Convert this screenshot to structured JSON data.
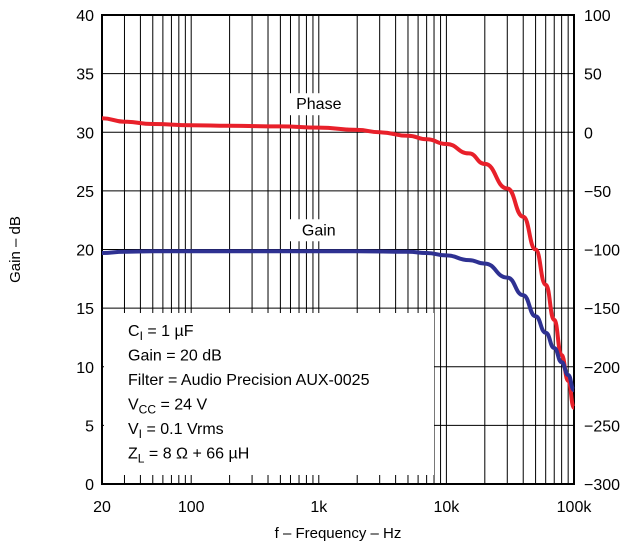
{
  "chart_data": {
    "type": "line",
    "x_scale": "log",
    "xlabel": "f – Frequency – Hz",
    "ylabel": "Gain – dB",
    "xlim": [
      20,
      100000
    ],
    "ylim": [
      0,
      40
    ],
    "y2lim": [
      -300,
      100
    ],
    "x_ticks": [
      "20",
      "100",
      "1k",
      "10k",
      "100k"
    ],
    "x_tick_values": [
      20,
      100,
      1000,
      10000,
      100000
    ],
    "y_ticks": [
      "0",
      "5",
      "10",
      "15",
      "20",
      "25",
      "30",
      "35",
      "40"
    ],
    "y_tick_values": [
      0,
      5,
      10,
      15,
      20,
      25,
      30,
      35,
      40
    ],
    "y2_ticks": [
      "−300",
      "−250",
      "−200",
      "−150",
      "−100",
      "−50",
      "0",
      "50",
      "100"
    ],
    "y2_tick_values": [
      -300,
      -250,
      -200,
      -150,
      -100,
      -50,
      0,
      50,
      100
    ],
    "grid": true,
    "series": [
      {
        "name": "Phase",
        "axis": "right",
        "color": "#e8202a",
        "x": [
          20,
          30,
          50,
          100,
          200,
          500,
          1000,
          2000,
          3000,
          5000,
          7000,
          10000,
          15000,
          20000,
          30000,
          40000,
          50000,
          60000,
          70000,
          80000,
          90000,
          100000
        ],
        "y": [
          12,
          9,
          7,
          6,
          5.5,
          5,
          4,
          2,
          0,
          -3,
          -6,
          -10,
          -18,
          -27,
          -48,
          -72,
          -100,
          -130,
          -160,
          -190,
          -212,
          -235
        ]
      },
      {
        "name": "Gain",
        "axis": "left",
        "color": "#2e3192",
        "x": [
          20,
          30,
          50,
          100,
          200,
          500,
          1000,
          2000,
          5000,
          7000,
          10000,
          15000,
          20000,
          30000,
          40000,
          50000,
          60000,
          70000,
          80000,
          90000,
          100000
        ],
        "y": [
          19.7,
          19.8,
          19.85,
          19.85,
          19.85,
          19.85,
          19.85,
          19.85,
          19.8,
          19.7,
          19.5,
          19.1,
          18.8,
          17.6,
          16.1,
          14.3,
          12.9,
          11.6,
          10.4,
          9.3,
          8.0
        ]
      }
    ],
    "series_labels": [
      "Phase",
      "Gain"
    ],
    "annotations": [
      {
        "main": "C",
        "sub": "I",
        "rest": " = 1 µF"
      },
      {
        "main": "Gain = 20 dB",
        "sub": "",
        "rest": ""
      },
      {
        "main": "Filter = Audio Precision AUX-0025",
        "sub": "",
        "rest": ""
      },
      {
        "main": "V",
        "sub": "CC",
        "rest": " = 24 V"
      },
      {
        "main": "V",
        "sub": "I",
        "rest": " = 0.1 Vrms"
      },
      {
        "main": "Z",
        "sub": "L",
        "rest": " = 8 Ω + 66 µH"
      }
    ]
  }
}
